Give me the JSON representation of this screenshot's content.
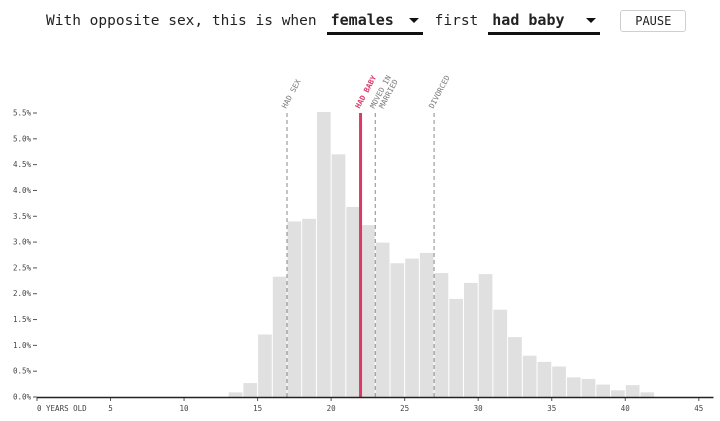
{
  "controls": {
    "prefix": "With opposite sex, this is when",
    "sex_value": "females",
    "middle": "first",
    "event_value": "had baby",
    "pause_label": "PAUSE"
  },
  "colors": {
    "bar": "#e0e0e0",
    "active_marker": "#d93a6a",
    "marker": "#8a8a8a",
    "axis": "#222222"
  },
  "chart_data": {
    "type": "bar",
    "title": "",
    "xlabel": "YEARS OLD",
    "ylabel": "",
    "xlim": [
      0,
      46
    ],
    "ylim": [
      0,
      0.055
    ],
    "x_ticks": [
      {
        "value": 0,
        "label": "0 YEARS OLD"
      },
      {
        "value": 5,
        "label": "5"
      },
      {
        "value": 10,
        "label": "10"
      },
      {
        "value": 15,
        "label": "15"
      },
      {
        "value": 20,
        "label": "20"
      },
      {
        "value": 25,
        "label": "25"
      },
      {
        "value": 30,
        "label": "30"
      },
      {
        "value": 35,
        "label": "35"
      },
      {
        "value": 40,
        "label": "40"
      },
      {
        "value": 45,
        "label": "45"
      }
    ],
    "y_ticks": [
      {
        "value": 0.0,
        "label": "0.0%"
      },
      {
        "value": 0.005,
        "label": "0.5%"
      },
      {
        "value": 0.01,
        "label": "1.0%"
      },
      {
        "value": 0.015,
        "label": "1.5%"
      },
      {
        "value": 0.02,
        "label": "2.0%"
      },
      {
        "value": 0.025,
        "label": "2.5%"
      },
      {
        "value": 0.03,
        "label": "3.0%"
      },
      {
        "value": 0.035,
        "label": "3.5%"
      },
      {
        "value": 0.04,
        "label": "4.0%"
      },
      {
        "value": 0.045,
        "label": "4.5%"
      },
      {
        "value": 0.05,
        "label": "5.0%"
      },
      {
        "value": 0.055,
        "label": "5.5%"
      }
    ],
    "bars": [
      {
        "age": 13,
        "value": 0.0009
      },
      {
        "age": 14,
        "value": 0.0027
      },
      {
        "age": 15,
        "value": 0.0121
      },
      {
        "age": 16,
        "value": 0.0233
      },
      {
        "age": 17,
        "value": 0.034
      },
      {
        "age": 18,
        "value": 0.0345
      },
      {
        "age": 19,
        "value": 0.0552
      },
      {
        "age": 20,
        "value": 0.047
      },
      {
        "age": 21,
        "value": 0.0368
      },
      {
        "age": 22,
        "value": 0.0333
      },
      {
        "age": 23,
        "value": 0.0299
      },
      {
        "age": 24,
        "value": 0.0259
      },
      {
        "age": 25,
        "value": 0.0268
      },
      {
        "age": 26,
        "value": 0.0279
      },
      {
        "age": 27,
        "value": 0.024
      },
      {
        "age": 28,
        "value": 0.019
      },
      {
        "age": 29,
        "value": 0.0221
      },
      {
        "age": 30,
        "value": 0.0238
      },
      {
        "age": 31,
        "value": 0.0169
      },
      {
        "age": 32,
        "value": 0.0116
      },
      {
        "age": 33,
        "value": 0.008
      },
      {
        "age": 34,
        "value": 0.0068
      },
      {
        "age": 35,
        "value": 0.0059
      },
      {
        "age": 36,
        "value": 0.0038
      },
      {
        "age": 37,
        "value": 0.0035
      },
      {
        "age": 38,
        "value": 0.0024
      },
      {
        "age": 39,
        "value": 0.0013
      },
      {
        "age": 40,
        "value": 0.0023
      },
      {
        "age": 41,
        "value": 0.0009
      }
    ],
    "markers": [
      {
        "label": "HAD SEX",
        "age": 17,
        "active": false
      },
      {
        "label": "HAD BABY",
        "age": 22,
        "active": true
      },
      {
        "label": "MOVED IN",
        "age": 23,
        "active": false
      },
      {
        "label": "MARRIED",
        "age": 23,
        "active": false
      },
      {
        "label": "DIVORCED",
        "age": 27,
        "active": false
      }
    ]
  }
}
